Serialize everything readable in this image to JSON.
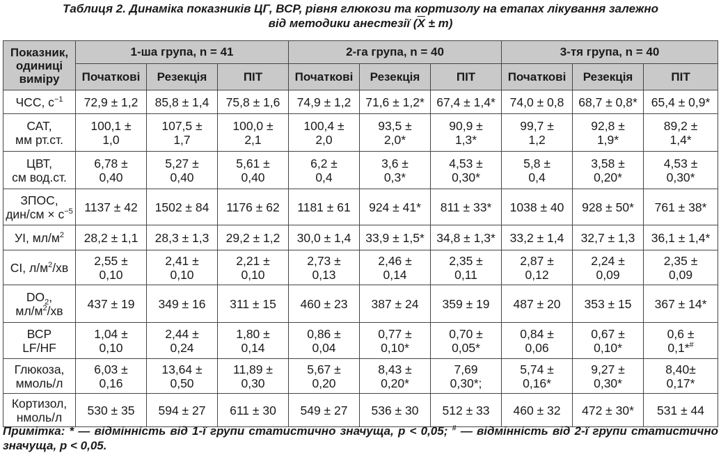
{
  "title": {
    "line1": "Таблиця 2.  Динаміка показників ЦГ, ВСР, рівня глюкози та кортизолу на етапах лікування залежно",
    "line2_prefix": "від методики анестезії (",
    "mean_symbol": "X",
    "line2_suffix": " ± m)"
  },
  "table": {
    "header_first": "Показник, одиниці виміру",
    "groups": [
      "1-ша група, n = 41",
      "2-га група, n = 40",
      "3-тя група, n = 40"
    ],
    "stages": [
      "Початкові",
      "Резекція",
      "ПІТ",
      "Початкові",
      "Резекція",
      "ПІТ",
      "Початкові",
      "Резекція",
      "ПІТ"
    ],
    "rows": [
      {
        "label_html": "ЧСС, с<sup>−1</sup>",
        "cells": [
          "72,9 ± 1,2",
          "85,8 ± 1,4",
          "75,8 ± 1,6",
          "74,9 ± 1,2",
          "71,6 ± 1,2*",
          "67,4 ± 1,4*",
          "74,0 ± 0,8",
          "68,7 ± 0,8*",
          "65,4 ± 0,9*"
        ]
      },
      {
        "label_html": "САТ,<br>мм рт.ст.",
        "cells": [
          "100,1 ±<br>1,0",
          "107,5 ±<br>1,7",
          "100,0 ±<br>2,1",
          "100,4 ±<br>2,0",
          "93,5 ±<br>2,0*",
          "90,9 ±<br>1,3*",
          "99,7 ±<br>1,2",
          "92,8 ±<br>1,9*",
          "89,2 ±<br>1,4*"
        ]
      },
      {
        "label_html": "ЦВТ,<br>см вод.ст.",
        "cells": [
          "6,78 ±<br>0,40",
          "5,27 ±<br>0,40",
          "5,61 ±<br>0,40",
          "6,2 ±<br>0,4",
          "3,6 ±<br>0,3*",
          "4,53 ±<br>0,30*",
          "5,8 ±<br>0,4",
          "3,58 ±<br>0,20*",
          "4,53 ±<br>0,30*"
        ]
      },
      {
        "label_html": "ЗПОС,<br>дин/см × с<sup>−5</sup>",
        "cells": [
          "1137 ± 42",
          "1502 ± 84",
          "1176 ± 62",
          "1181 ± 61",
          "924 ± 41*",
          "811 ± 33*",
          "1038 ± 40",
          "928 ± 50*",
          "761 ± 38*"
        ]
      },
      {
        "label_html": "УІ, мл/м<sup>2</sup>",
        "cells": [
          "28,2 ± 1,1",
          "28,3 ± 1,3",
          "29,2 ± 1,2",
          "30,0 ± 1,4",
          "33,9 ± 1,5*",
          "34,8 ± 1,3*",
          "33,2 ± 1,4",
          "32,7 ± 1,3",
          "36,1 ± 1,4*"
        ]
      },
      {
        "label_html": "СІ, л/м<sup>2</sup>/хв",
        "cells": [
          "2,55 ±<br>0,10",
          "2,41 ±<br>0,10",
          "2,21 ±<br>0,10",
          "2,73 ±<br>0,13",
          "2,46 ±<br>0,14",
          "2,35 ±<br>0,11",
          "2,87 ±<br>0,12",
          "2,24 ±<br>0,09",
          "2,35 ±<br>0,09"
        ]
      },
      {
        "label_html": "DO<sub>2</sub>,<br>мл/м<sup>2</sup>/хв",
        "cells": [
          "437 ± 19",
          "349 ± 16",
          "311 ± 15",
          "460 ± 23",
          "387 ± 24",
          "359 ± 19",
          "487 ± 20",
          "353 ± 15",
          "367 ± 14*"
        ]
      },
      {
        "label_html": "ВСР<br>LF/HF",
        "cells": [
          "1,04 ±<br>0,10",
          "2,44 ±<br>0,24",
          "1,80 ±<br>0,14",
          "0,86 ±<br>0,04",
          "0,77 ±<br>0,10*",
          "0,70 ±<br>0,05*",
          "0,84 ±<br>0,06",
          "0,67 ±<br>0,10*",
          "0,6 ±<br>0,1*<sup>#</sup>"
        ]
      },
      {
        "label_html": "Глюкоза,<br>ммоль/л",
        "cells": [
          "6,03 ±<br>0,16",
          "13,64 ±<br>0,50",
          "11,89 ±<br>0,30",
          "5,67 ±<br>0,20",
          "8,43 ±<br>0,20*",
          "7,69<br>0,30*;",
          "5,74 ±<br>0,16*",
          "9,27 ±<br>0,30*",
          "8,40±<br>0,17*"
        ]
      },
      {
        "label_html": "Кортизол,<br>нмоль/л",
        "cells": [
          "530 ± 35",
          "594 ± 27",
          "611 ± 30",
          "549 ± 27",
          "536 ± 30",
          "512 ± 33",
          "460 ± 32",
          "472 ± 30*",
          "531 ± 44"
        ]
      }
    ]
  },
  "note_html": "Примітка:  * — відмінність від 1-ї групи  статистично значуща, р &lt; 0,05; <sup>#</sup> — відмінність від 2-ї групи  статистично значуща, р &lt; 0,05."
}
